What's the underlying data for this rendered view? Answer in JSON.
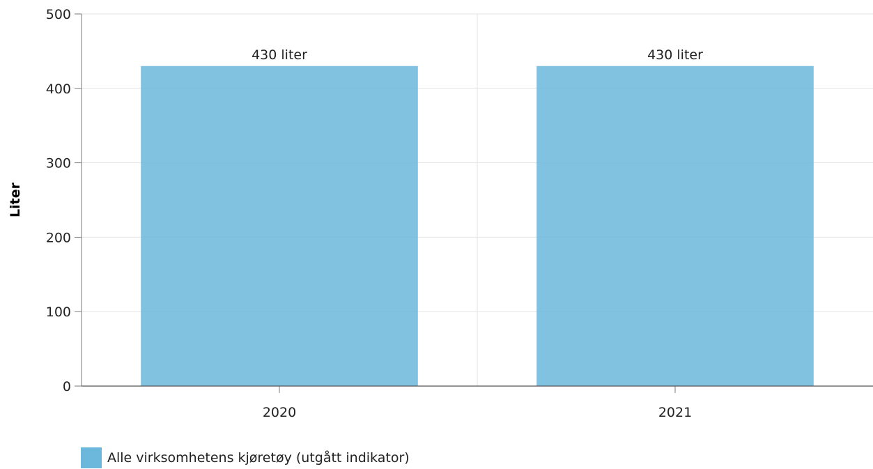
{
  "chart_data": {
    "type": "bar",
    "categories": [
      "2020",
      "2021"
    ],
    "series": [
      {
        "name": "Alle virksomhetens kjøretøy (utgått indikator)",
        "values": [
          430,
          430
        ],
        "data_labels": [
          "430 liter",
          "430 liter"
        ],
        "color": "#6cb7dc"
      }
    ],
    "ylabel": "Liter",
    "ylim": [
      0,
      500
    ],
    "yticks": [
      0,
      100,
      200,
      300,
      400,
      500
    ],
    "grid": true,
    "legend": "bottom-left"
  }
}
